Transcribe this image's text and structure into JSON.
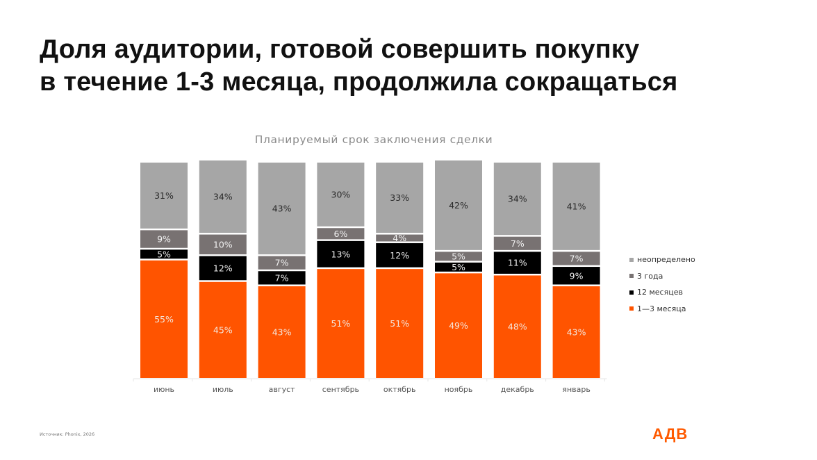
{
  "title_lines": [
    "Доля аудитории, готовой совершить покупку",
    "в течение 1-3 месяца, продолжила сокращаться"
  ],
  "source": "Источник: Phonix, 2026",
  "logo": "АДВ",
  "colors": {
    "orange": "#ff5400",
    "black": "#000000",
    "dark_gray": "#787272",
    "light_gray": "#a6a6a6"
  },
  "chart_data": {
    "type": "bar",
    "stacked": true,
    "percent": true,
    "title": "Планируемый срок заключения сделки",
    "xlabel": "",
    "ylabel": "",
    "ylim": [
      0,
      100
    ],
    "grid": false,
    "legend_position": "right",
    "categories": [
      "июнь",
      "июль",
      "август",
      "сентябрь",
      "октябрь",
      "ноябрь",
      "декабрь",
      "январь"
    ],
    "series": [
      {
        "name": "1—3 месяца",
        "color": "#ff5400",
        "label_color": "#f4e6dc",
        "values": [
          55,
          45,
          43,
          51,
          51,
          49,
          48,
          43
        ]
      },
      {
        "name": "12 месяцев",
        "color": "#000000",
        "label_color": "#f0f0f0",
        "values": [
          5,
          12,
          7,
          13,
          12,
          5,
          11,
          9
        ]
      },
      {
        "name": "3 года",
        "color": "#787272",
        "label_color": "#f2f2f2",
        "values": [
          9,
          10,
          7,
          6,
          4,
          5,
          7,
          7
        ]
      },
      {
        "name": "неопределено",
        "color": "#a6a6a6",
        "label_color": "#2a2a2a",
        "values": [
          31,
          34,
          43,
          30,
          33,
          42,
          34,
          41
        ]
      }
    ]
  }
}
